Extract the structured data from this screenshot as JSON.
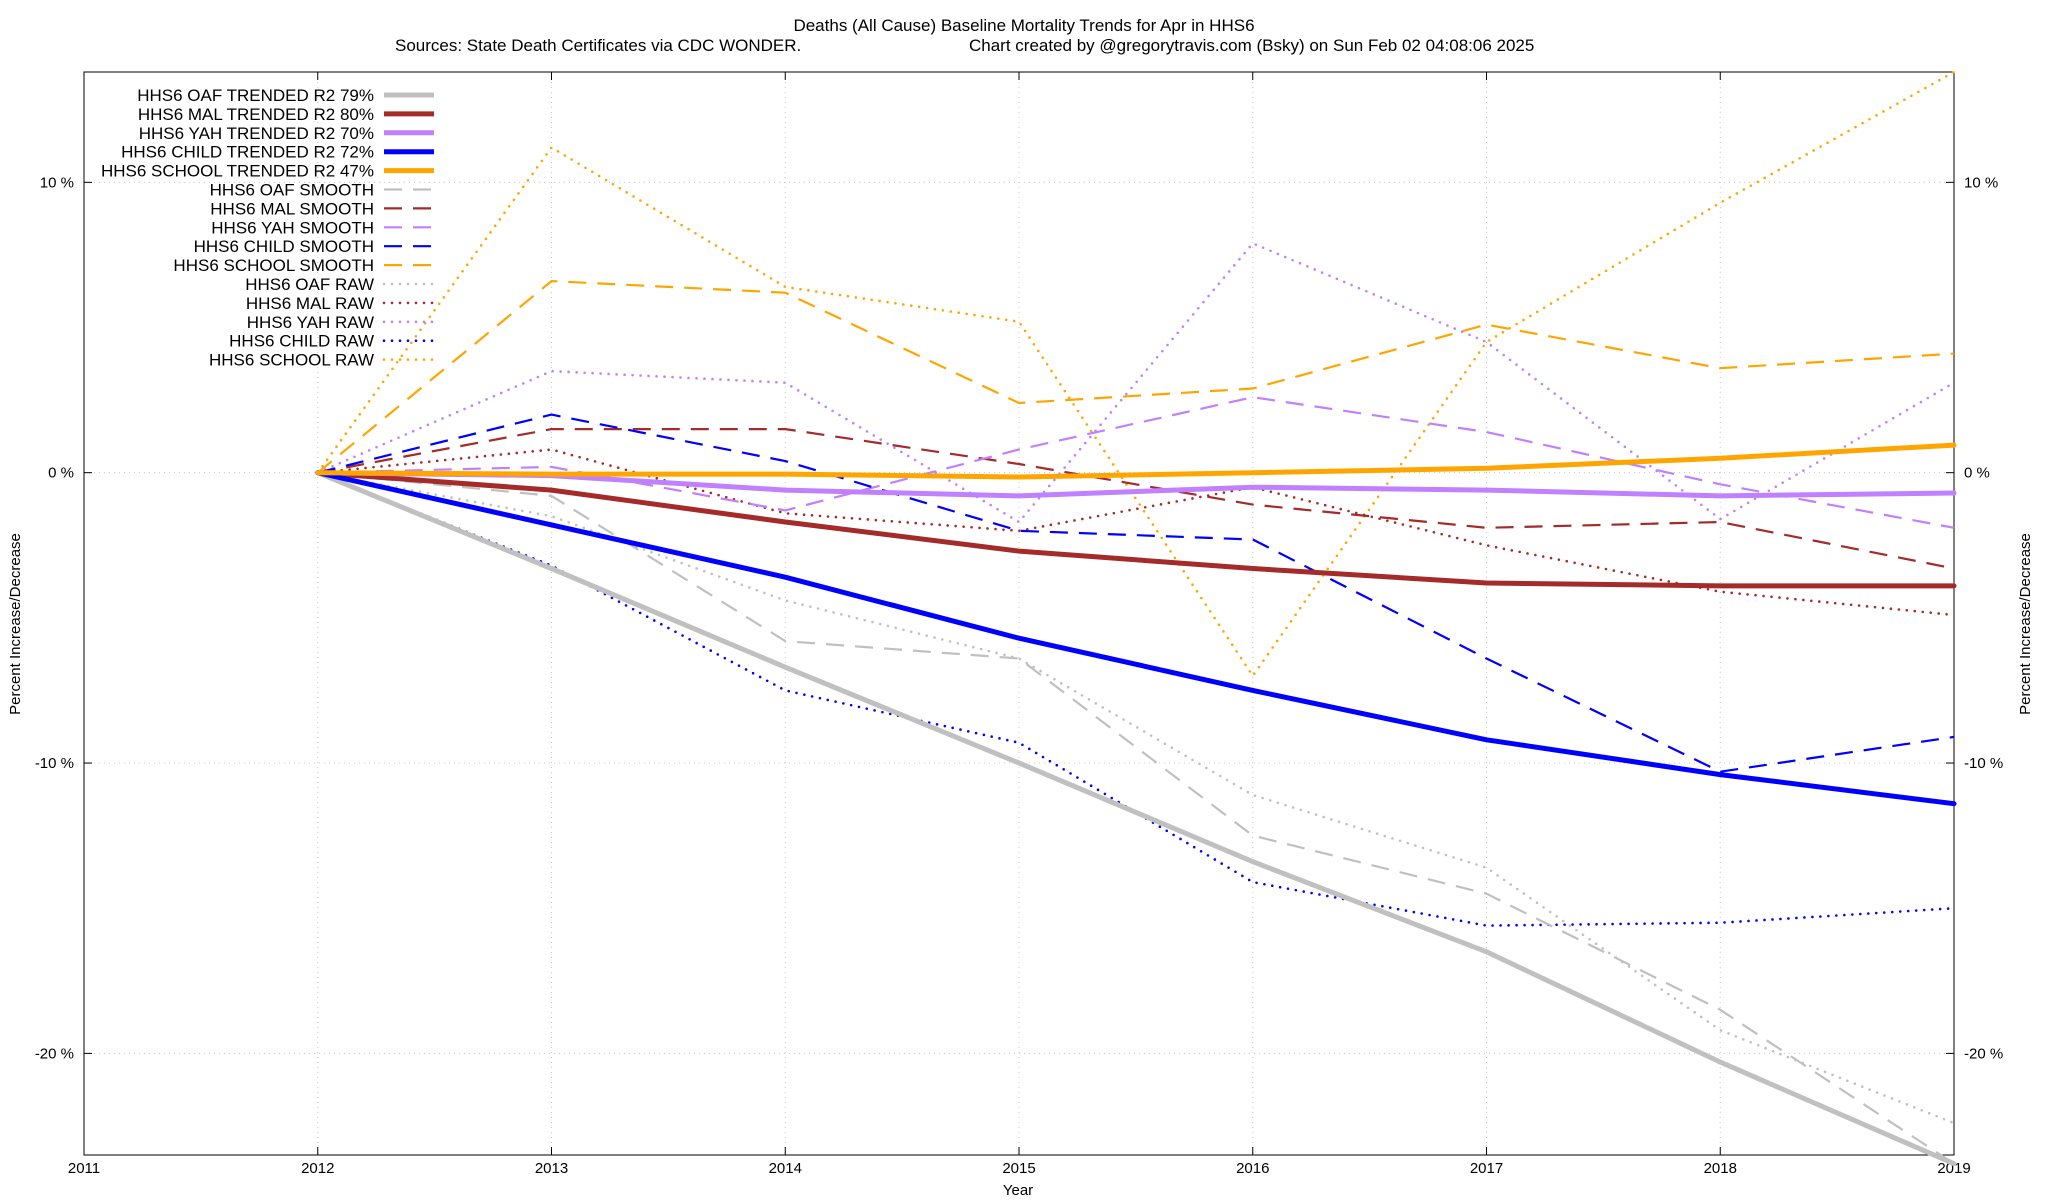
{
  "chart_data": {
    "type": "line",
    "title": "Deaths (All Cause)  Baseline Mortality Trends for Apr in HHS6",
    "subtitle_left": "Sources: State Death Certificates via CDC WONDER.",
    "subtitle_right": "Chart created by @gregorytravis.com (Bsky) on Sun Feb 02 04:08:06 2025",
    "xlabel": "Year",
    "ylabel_left": "Percent Increase/Decrease",
    "ylabel_right": "Percent Increase/Decrease",
    "xlim": [
      2011,
      2019
    ],
    "ylim": [
      -23.5,
      13.8
    ],
    "x_ticks": [
      2011,
      2012,
      2013,
      2014,
      2015,
      2016,
      2017,
      2018,
      2019
    ],
    "x_tick_labels": [
      "2011",
      "2012",
      "2013",
      "2014",
      "2015",
      "2016",
      "2017",
      "2018",
      "2019"
    ],
    "y_ticks": [
      10,
      0,
      -10,
      -20
    ],
    "y_tick_labels": [
      "10 %",
      "0 %",
      "-10 %",
      "-20 %"
    ],
    "grid": true,
    "legend_position": "top-left",
    "x": [
      2012,
      2013,
      2014,
      2015,
      2016,
      2017,
      2018,
      2019
    ],
    "series": [
      {
        "name": "HHS6 OAF TRENDED R2  79%",
        "color": "#c0c0c0",
        "style": "solid",
        "values": [
          0,
          -3.3,
          -6.7,
          -10.0,
          -13.4,
          -16.5,
          -20.3,
          -23.8
        ]
      },
      {
        "name": "HHS6 MAL TRENDED R2  80%",
        "color": "#a52a2a",
        "style": "solid",
        "values": [
          0,
          -0.6,
          -1.7,
          -2.7,
          -3.3,
          -3.8,
          -3.9,
          -3.9
        ]
      },
      {
        "name": "HHS6 YAH TRENDED R2  70%",
        "color": "#c080ff",
        "style": "solid",
        "values": [
          0,
          -0.1,
          -0.6,
          -0.8,
          -0.5,
          -0.6,
          -0.8,
          -0.7
        ]
      },
      {
        "name": "HHS6 CHILD TRENDED R2  72%",
        "color": "#0000ff",
        "style": "solid",
        "values": [
          0,
          -1.8,
          -3.6,
          -5.7,
          -7.5,
          -9.2,
          -10.4,
          -11.4
        ]
      },
      {
        "name": "HHS6 SCHOOL TRENDED R2  47%",
        "color": "#ffa500",
        "style": "solid",
        "values": [
          0,
          -0.05,
          -0.05,
          -0.15,
          0.0,
          0.15,
          0.5,
          0.95
        ]
      },
      {
        "name": "HHS6 OAF SMOOTH",
        "color": "#c0c0c0",
        "style": "dash",
        "values": [
          0,
          -0.8,
          -5.8,
          -6.4,
          -12.5,
          -14.5,
          -18.5,
          -23.8
        ]
      },
      {
        "name": "HHS6 MAL SMOOTH",
        "color": "#a52a2a",
        "style": "dash",
        "values": [
          0,
          1.5,
          1.5,
          0.3,
          -1.1,
          -1.9,
          -1.7,
          -3.3
        ]
      },
      {
        "name": "HHS6 YAH SMOOTH",
        "color": "#c080ff",
        "style": "dash",
        "values": [
          0,
          0.2,
          -1.3,
          0.8,
          2.6,
          1.4,
          -0.4,
          -1.9
        ]
      },
      {
        "name": "HHS6 CHILD SMOOTH",
        "color": "#0000ff",
        "style": "dash",
        "values": [
          0,
          2.0,
          0.4,
          -2.0,
          -2.3,
          -6.4,
          -10.3,
          -9.1
        ]
      },
      {
        "name": "HHS6 SCHOOL SMOOTH",
        "color": "#ffa500",
        "style": "dash",
        "values": [
          0,
          6.6,
          6.2,
          2.4,
          2.9,
          5.1,
          3.6,
          4.1
        ]
      },
      {
        "name": "HHS6 OAF RAW",
        "color": "#c0c0c0",
        "style": "dot",
        "values": [
          0,
          -1.5,
          -4.4,
          -6.4,
          -11.1,
          -13.6,
          -19.2,
          -22.4
        ]
      },
      {
        "name": "HHS6 MAL RAW",
        "color": "#a52a2a",
        "style": "dot",
        "values": [
          0,
          0.8,
          -1.4,
          -2.0,
          -0.5,
          -2.5,
          -4.1,
          -4.9
        ]
      },
      {
        "name": "HHS6 YAH RAW",
        "color": "#c080ff",
        "style": "dot",
        "values": [
          0,
          3.5,
          3.1,
          -1.7,
          7.9,
          4.5,
          -1.6,
          3.1
        ]
      },
      {
        "name": "HHS6 CHILD RAW",
        "color": "#0000ff",
        "style": "dot",
        "values": [
          0,
          -3.2,
          -7.5,
          -9.3,
          -14.1,
          -15.6,
          -15.5,
          -15.0
        ]
      },
      {
        "name": "HHS6 SCHOOL RAW",
        "color": "#ffa500",
        "style": "dot",
        "values": [
          0,
          11.2,
          6.4,
          5.2,
          -7.0,
          4.5,
          9.3,
          13.8
        ]
      }
    ]
  }
}
